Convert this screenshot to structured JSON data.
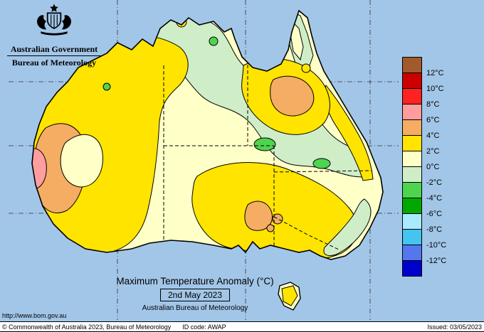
{
  "header": {
    "government_title": "Australian Government",
    "bureau_title": "Bureau of Meteorology"
  },
  "titles": {
    "main": "Maximum Temperature Anomaly (°C)",
    "date": "2nd May 2023",
    "org": "Australian Bureau of Meteorology",
    "url": "http://www.bom.gov.au"
  },
  "legend": {
    "cells": [
      {
        "color": "#a05a2c",
        "label": "12°C"
      },
      {
        "color": "#cc0000",
        "label": "10°C"
      },
      {
        "color": "#ff2222",
        "label": "8°C"
      },
      {
        "color": "#ff9d9d",
        "label": "6°C"
      },
      {
        "color": "#f4ad63",
        "label": "4°C"
      },
      {
        "color": "#ffe400",
        "label": "2°C"
      },
      {
        "color": "#ffffc8",
        "label": "0°C"
      },
      {
        "color": "#cfeec8",
        "label": "-2°C"
      },
      {
        "color": "#4fd44f",
        "label": "-4°C"
      },
      {
        "color": "#00a800",
        "label": "-6°C"
      },
      {
        "color": "#aaeaff",
        "label": "-8°C"
      },
      {
        "color": "#44c4ee",
        "label": "-10°C"
      },
      {
        "color": "#5577ee",
        "label": "-12°C"
      },
      {
        "color": "#0000cc",
        "label": ""
      }
    ]
  },
  "footer": {
    "copyright": "© Commonwealth of Australia 2023, Bureau of Meteorology",
    "id_code": "ID code: AWAP",
    "issued": "Issued: 03/05/2023"
  },
  "colors": {
    "ocean": "#a2c6e8",
    "land_base": "#ffffc8",
    "yellow": "#ffe400",
    "pale_green": "#cfeec8",
    "green": "#4fd44f",
    "orange": "#f4ad63",
    "pink": "#ff9e9e",
    "outline": "#000000"
  }
}
